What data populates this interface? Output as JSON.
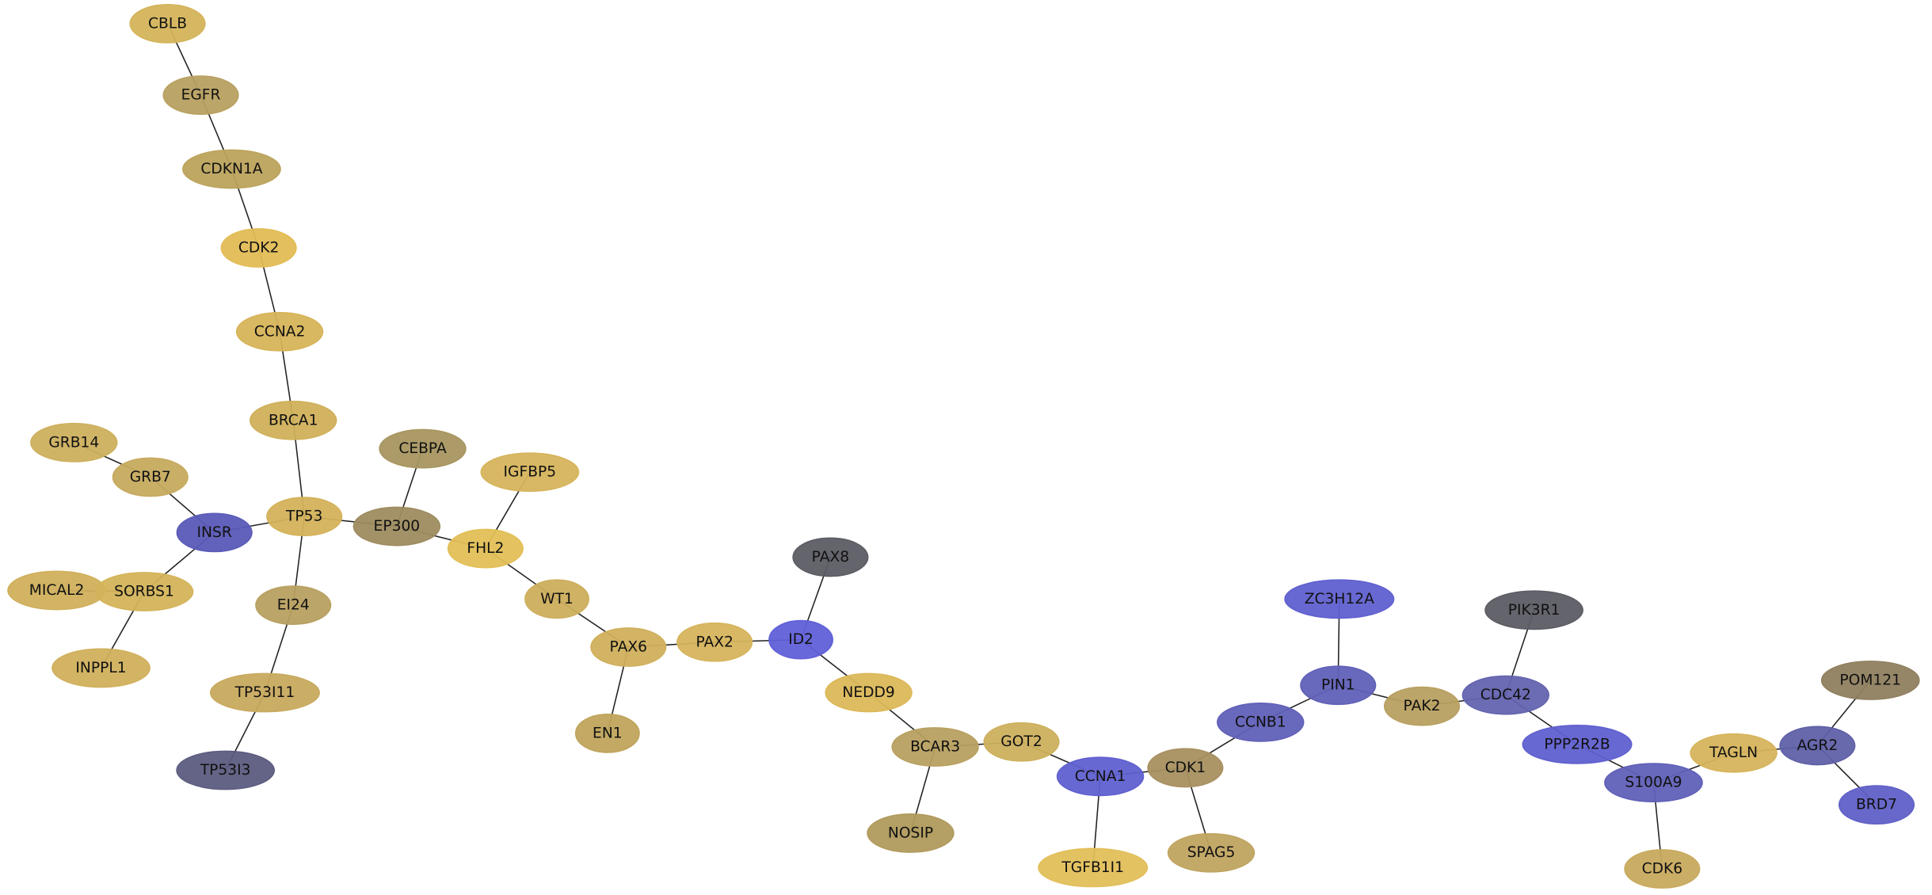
{
  "nodes": [
    {
      "label": "CBLB"
    },
    {
      "label": "EGFR"
    },
    {
      "label": "CDKN1A"
    },
    {
      "label": "CDK2"
    },
    {
      "label": "CCNA2"
    },
    {
      "label": "BRCA1"
    },
    {
      "label": "GRB14"
    },
    {
      "label": "GRB7"
    },
    {
      "label": "INSR"
    },
    {
      "label": "TP53"
    },
    {
      "label": "CEBPA"
    },
    {
      "label": "EP300"
    },
    {
      "label": "IGFBP5"
    },
    {
      "label": "FHL2"
    },
    {
      "label": "MICAL2"
    },
    {
      "label": "SORBS1"
    },
    {
      "label": "EI24"
    },
    {
      "label": "INPPL1"
    },
    {
      "label": "TP53I11"
    },
    {
      "label": "TP53I3"
    },
    {
      "label": "WT1"
    },
    {
      "label": "PAX8"
    },
    {
      "label": "PAX6"
    },
    {
      "label": "PAX2"
    },
    {
      "label": "ID2"
    },
    {
      "label": "NEDD9"
    },
    {
      "label": "EN1"
    },
    {
      "label": "BCAR3"
    },
    {
      "label": "GOT2"
    },
    {
      "label": "NOSIP"
    },
    {
      "label": "CCNA1"
    },
    {
      "label": "CDK1"
    },
    {
      "label": "TGFB1I1"
    },
    {
      "label": "SPAG5"
    },
    {
      "label": "CCNB1"
    },
    {
      "label": "ZC3H12A"
    },
    {
      "label": "PIN1"
    },
    {
      "label": "PAK2"
    },
    {
      "label": "PIK3R1"
    },
    {
      "label": "CDC42"
    },
    {
      "label": "PPP2R2B"
    },
    {
      "label": "S100A9"
    },
    {
      "label": "TAGLN"
    },
    {
      "label": "AGR2"
    },
    {
      "label": "POM121"
    },
    {
      "label": "BRD7"
    },
    {
      "label": "CDK6"
    }
  ]
}
